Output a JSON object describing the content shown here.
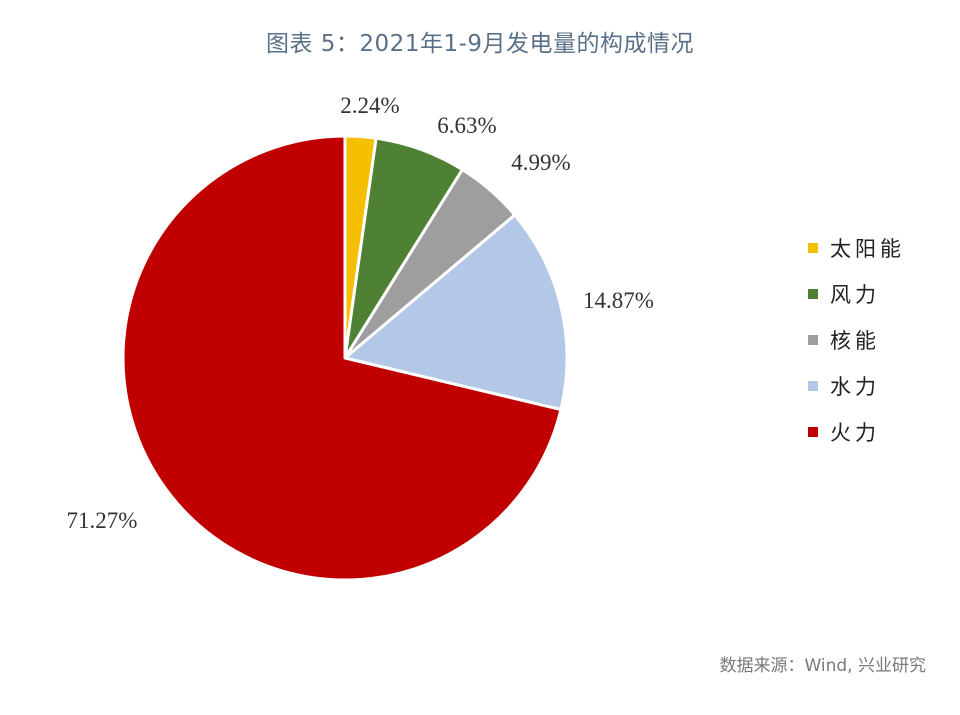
{
  "title": "图表 5：2021年1-9月发电量的构成情况",
  "source": "数据来源：Wind, 兴业研究",
  "chart_data": {
    "type": "pie",
    "title": "图表 5：2021年1-9月发电量的构成情况",
    "legend_position": "right",
    "start_angle_deg": 0,
    "direction": "clockwise",
    "slices": [
      {
        "name": "太阳能",
        "value": 2.24,
        "label": "2.24%",
        "color": "#f5c000"
      },
      {
        "name": "风力",
        "value": 6.63,
        "label": "6.63%",
        "color": "#4e8133"
      },
      {
        "name": "核能",
        "value": 4.99,
        "label": "4.99%",
        "color": "#9e9e9e"
      },
      {
        "name": "水力",
        "value": 14.87,
        "label": "14.87%",
        "color": "#b2c8e6"
      },
      {
        "name": "火力",
        "value": 71.27,
        "label": "71.27%",
        "color": "#c00000"
      }
    ]
  }
}
